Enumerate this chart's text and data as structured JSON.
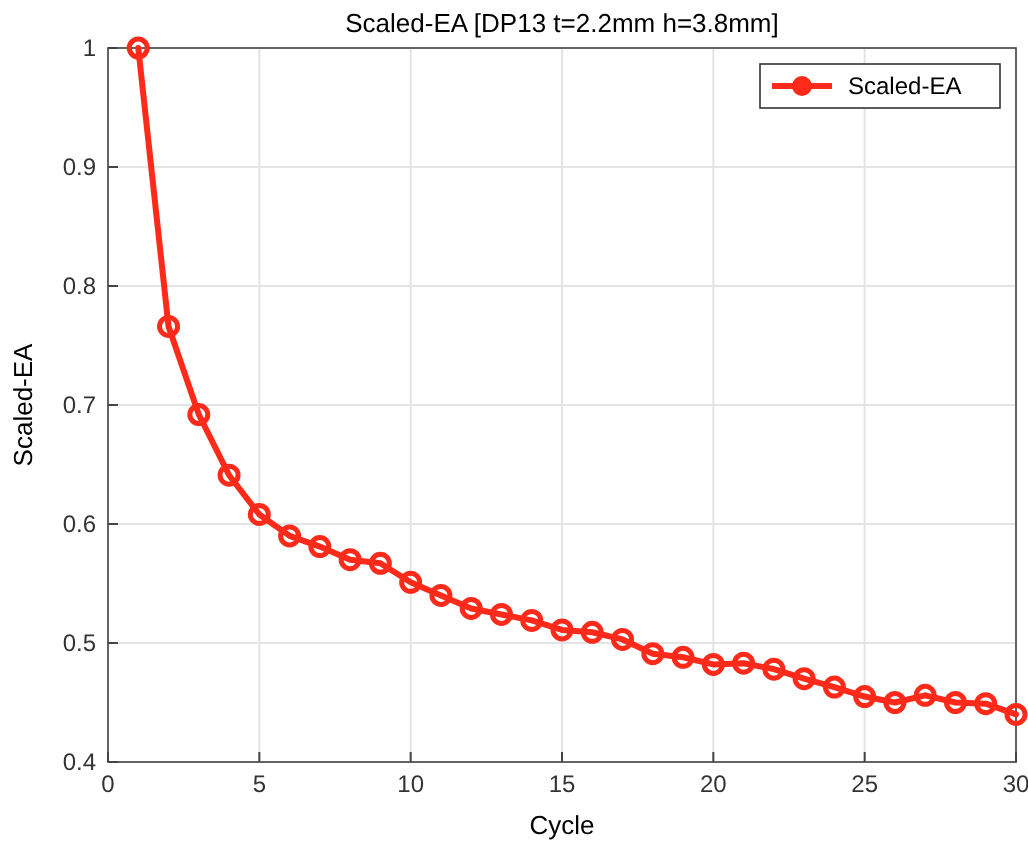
{
  "chart_data": {
    "type": "line",
    "title": "Scaled-EA [DP13 t=2.2mm h=3.8mm]",
    "xlabel": "Cycle",
    "ylabel": "Scaled-EA",
    "x": [
      1,
      2,
      3,
      4,
      5,
      6,
      7,
      8,
      9,
      10,
      11,
      12,
      13,
      14,
      15,
      16,
      17,
      18,
      19,
      20,
      21,
      22,
      23,
      24,
      25,
      26,
      27,
      28,
      29,
      30
    ],
    "series": [
      {
        "name": "Scaled-EA",
        "color": "#ff2a1a",
        "values": [
          1,
          0.766,
          0.692,
          0.641,
          0.608,
          0.59,
          0.581,
          0.57,
          0.567,
          0.551,
          0.54,
          0.529,
          0.524,
          0.519,
          0.511,
          0.509,
          0.503,
          0.491,
          0.488,
          0.482,
          0.483,
          0.478,
          0.47,
          0.463,
          0.455,
          0.45,
          0.456,
          0.45,
          0.449,
          0.44
        ]
      }
    ],
    "xlim": [
      0,
      30
    ],
    "xticks": [
      0,
      5,
      10,
      15,
      20,
      25,
      30
    ],
    "ylim": [
      0.4,
      1
    ],
    "yticks": [
      0.4,
      0.5,
      0.6,
      0.7,
      0.8,
      0.9,
      1
    ],
    "grid": true,
    "legend": "top right",
    "marker": "circle",
    "line_style": "solid"
  }
}
